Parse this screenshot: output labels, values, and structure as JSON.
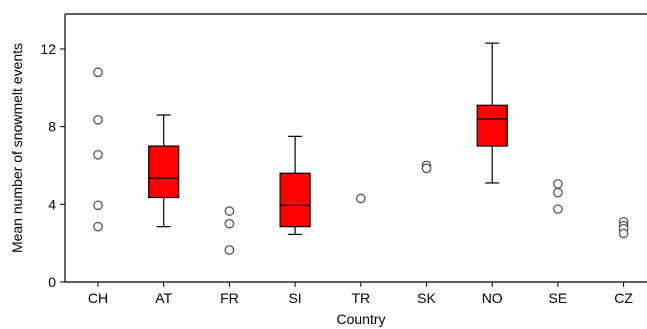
{
  "chart_data": {
    "type": "box",
    "xlabel": "Country",
    "ylabel": "Mean number of snowmelt events",
    "ylim": [
      0,
      13.8
    ],
    "yticks": [
      0,
      4,
      8,
      12
    ],
    "categories": [
      "CH",
      "AT",
      "FR",
      "SI",
      "TR",
      "SK",
      "NO",
      "SE",
      "CZ"
    ],
    "groups": [
      {
        "category": "CH",
        "points": [
          10.8,
          8.35,
          6.55,
          3.95,
          2.85
        ]
      },
      {
        "category": "AT",
        "box": {
          "whisker_low": 2.85,
          "q1": 4.35,
          "median": 5.35,
          "q3": 7.0,
          "whisker_high": 8.6
        }
      },
      {
        "category": "FR",
        "points": [
          3.65,
          3.0,
          1.65
        ]
      },
      {
        "category": "SI",
        "box": {
          "whisker_low": 2.45,
          "q1": 2.85,
          "median": 3.95,
          "q3": 5.6,
          "whisker_high": 7.5
        }
      },
      {
        "category": "TR",
        "points": [
          4.3
        ]
      },
      {
        "category": "SK",
        "points": [
          6.0,
          5.85
        ]
      },
      {
        "category": "NO",
        "box": {
          "whisker_low": 5.1,
          "q1": 7.0,
          "median": 8.4,
          "q3": 9.1,
          "whisker_high": 12.3
        }
      },
      {
        "category": "SE",
        "points": [
          5.05,
          4.6,
          3.75
        ]
      },
      {
        "category": "CZ",
        "points": [
          3.1,
          2.9,
          2.75,
          2.5
        ]
      }
    ],
    "grid": false,
    "colors": {
      "box_fill": "#ff0000",
      "outlier_stroke": "#555555"
    }
  }
}
